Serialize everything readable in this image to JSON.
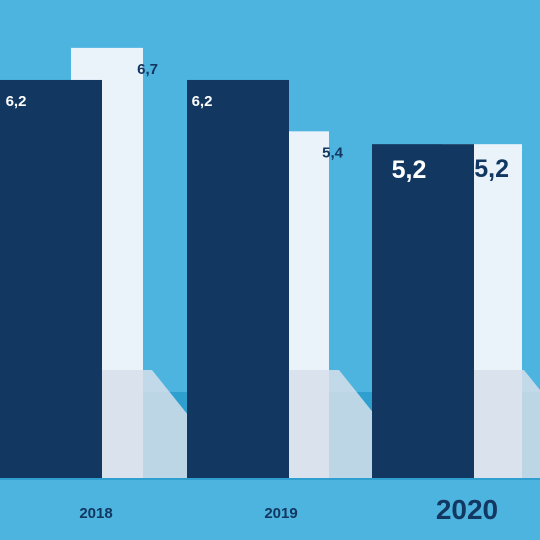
{
  "chart_data": {
    "type": "bar",
    "categories": [
      "2018",
      "2019",
      "2020"
    ],
    "series": [
      {
        "values": [
          6.2,
          6.2,
          5.2
        ],
        "labels": [
          "6,2",
          "6,2",
          "5,2"
        ],
        "color": "#123761"
      },
      {
        "values": [
          6.7,
          5.4,
          5.2
        ],
        "labels": [
          "6,7",
          "5,4",
          "5,2"
        ],
        "color": "#eaf2fa"
      }
    ],
    "title": "",
    "xlabel": "",
    "ylabel": "",
    "ylim": [
      0,
      7
    ],
    "grid": false,
    "legend": "none"
  },
  "colors": {
    "background": "#4db3df",
    "floor": "#2f9fd0",
    "shadow": "#d6dfea",
    "dark_bar": "#123761",
    "light_bar": "#eaf2fa",
    "label_dark": "#123761",
    "label_light": "#ffffff"
  }
}
